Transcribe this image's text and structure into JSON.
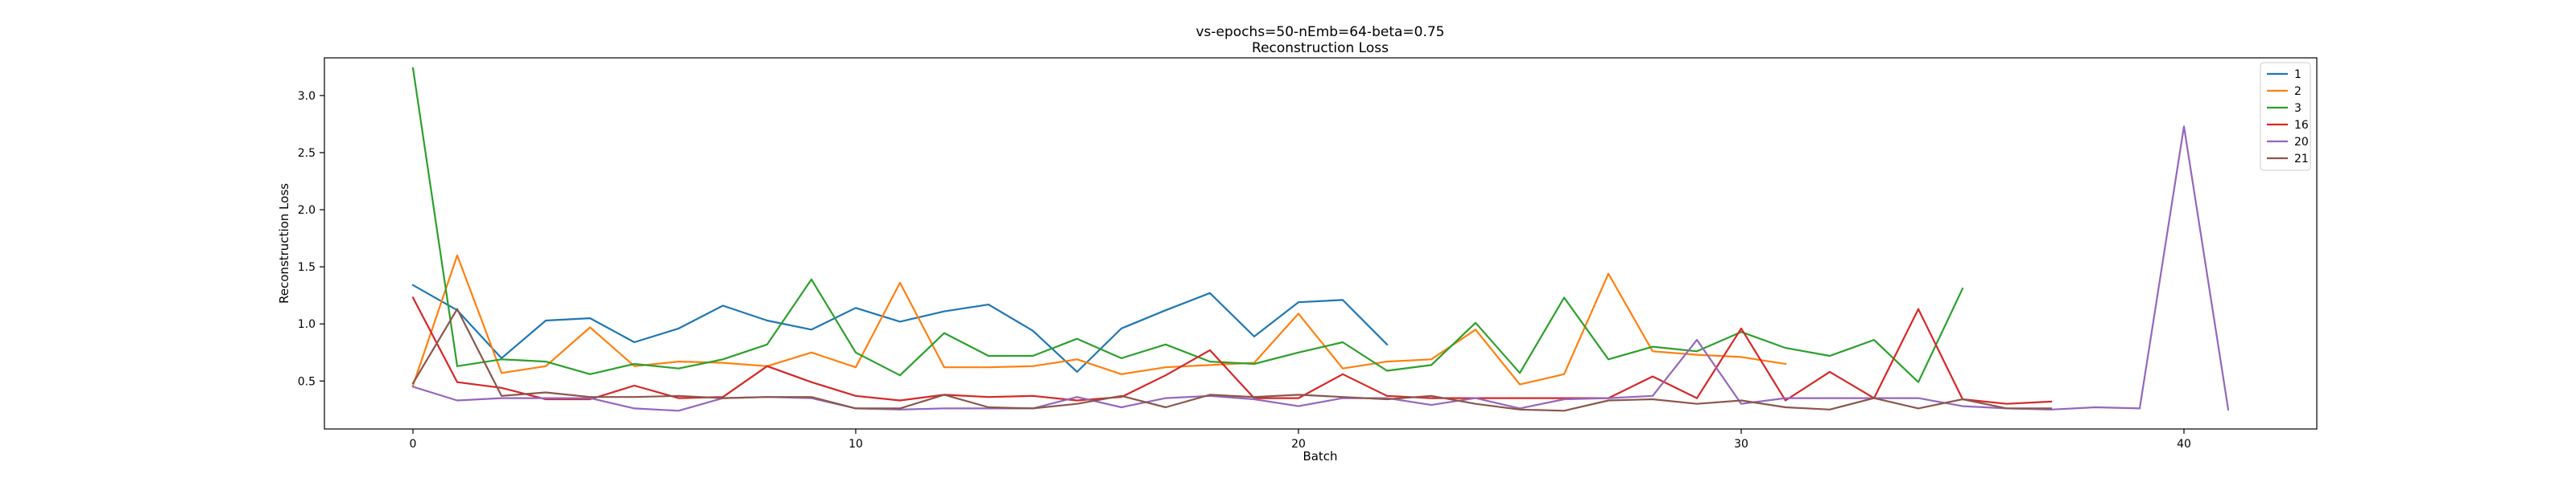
{
  "chart_data": {
    "type": "line",
    "title": "vs-epochs=50-nEmb=64-beta=0.75",
    "subtitle": "Reconstruction Loss",
    "xlabel": "Batch",
    "ylabel": "Reconstruction Loss",
    "xlim": [
      -2,
      43
    ],
    "ylim": [
      0.08,
      3.33
    ],
    "xticks": [
      0,
      10,
      20,
      30,
      40
    ],
    "yticks": [
      0.5,
      1.0,
      1.5,
      2.0,
      2.5,
      3.0
    ],
    "xtick_labels": [
      "0",
      "10",
      "20",
      "30",
      "40"
    ],
    "ytick_labels": [
      "0.5",
      "1.0",
      "1.5",
      "2.0",
      "2.5",
      "3.0"
    ],
    "grid": false,
    "legend_position": "top-right",
    "series": [
      {
        "name": "1",
        "color": "#1f77b4",
        "values": [
          1.34,
          1.12,
          0.7,
          1.03,
          1.05,
          0.84,
          0.96,
          1.16,
          1.03,
          0.95,
          1.14,
          1.02,
          1.11,
          1.17,
          0.94,
          0.58,
          0.96,
          1.12,
          1.27,
          0.89,
          1.19,
          1.21,
          0.82
        ]
      },
      {
        "name": "2",
        "color": "#ff7f0e",
        "values": [
          0.46,
          1.6,
          0.57,
          0.63,
          0.97,
          0.63,
          0.67,
          0.66,
          0.63,
          0.75,
          0.62,
          1.36,
          0.62,
          0.62,
          0.63,
          0.69,
          0.56,
          0.62,
          0.64,
          0.66,
          1.09,
          0.61,
          0.67,
          0.69,
          0.95,
          0.47,
          0.56,
          1.44,
          0.76,
          0.73,
          0.71,
          0.65
        ]
      },
      {
        "name": "3",
        "color": "#2ca02c",
        "values": [
          3.24,
          0.63,
          0.69,
          0.67,
          0.56,
          0.65,
          0.61,
          0.69,
          0.82,
          1.39,
          0.75,
          0.55,
          0.92,
          0.72,
          0.72,
          0.87,
          0.7,
          0.82,
          0.67,
          0.65,
          0.75,
          0.84,
          0.59,
          0.64,
          1.01,
          0.57,
          1.23,
          0.69,
          0.8,
          0.76,
          0.93,
          0.79,
          0.72,
          0.86,
          0.49,
          1.31
        ]
      },
      {
        "name": "16",
        "color": "#d62728",
        "values": [
          1.23,
          0.49,
          0.44,
          0.34,
          0.34,
          0.46,
          0.35,
          0.36,
          0.63,
          0.49,
          0.37,
          0.33,
          0.38,
          0.36,
          0.37,
          0.33,
          0.36,
          0.55,
          0.77,
          0.35,
          0.35,
          0.56,
          0.37,
          0.35,
          0.35,
          0.35,
          0.35,
          0.35,
          0.54,
          0.35,
          0.96,
          0.33,
          0.58,
          0.35,
          1.13,
          0.34,
          0.3,
          0.32
        ]
      },
      {
        "name": "20",
        "color": "#9467bd",
        "values": [
          0.45,
          0.33,
          0.35,
          0.35,
          0.35,
          0.26,
          0.24,
          0.35,
          0.36,
          0.35,
          0.26,
          0.25,
          0.26,
          0.26,
          0.26,
          0.36,
          0.27,
          0.35,
          0.37,
          0.34,
          0.28,
          0.35,
          0.35,
          0.29,
          0.35,
          0.26,
          0.34,
          0.35,
          0.37,
          0.86,
          0.3,
          0.35,
          0.35,
          0.35,
          0.35,
          0.28,
          0.26,
          0.25,
          0.27,
          0.26,
          2.73,
          0.25
        ]
      },
      {
        "name": "21",
        "color": "#8c564b",
        "values": [
          0.48,
          1.13,
          0.37,
          0.4,
          0.36,
          0.36,
          0.37,
          0.35,
          0.36,
          0.36,
          0.26,
          0.26,
          0.38,
          0.27,
          0.26,
          0.3,
          0.37,
          0.27,
          0.38,
          0.36,
          0.38,
          0.36,
          0.34,
          0.37,
          0.3,
          0.25,
          0.24,
          0.33,
          0.34,
          0.3,
          0.33,
          0.27,
          0.25,
          0.35,
          0.26,
          0.34,
          0.26,
          0.26
        ]
      }
    ]
  }
}
